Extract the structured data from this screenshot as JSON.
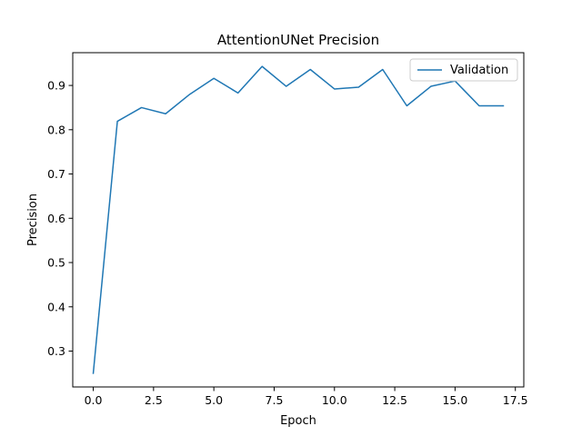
{
  "chart_data": {
    "type": "line",
    "title": "AttentionUNet Precision",
    "xlabel": "Epoch",
    "ylabel": "Precision",
    "xlim": [
      -0.85,
      17.85
    ],
    "ylim": [
      0.219,
      0.974
    ],
    "xticks": [
      0.0,
      2.5,
      5.0,
      7.5,
      10.0,
      12.5,
      15.0,
      17.5
    ],
    "xtick_labels": [
      "0.0",
      "2.5",
      "5.0",
      "7.5",
      "10.0",
      "12.5",
      "15.0",
      "17.5"
    ],
    "yticks": [
      0.3,
      0.4,
      0.5,
      0.6,
      0.7,
      0.8,
      0.9
    ],
    "ytick_labels": [
      "0.3",
      "0.4",
      "0.5",
      "0.6",
      "0.7",
      "0.8",
      "0.9"
    ],
    "grid": false,
    "legend_position": "top-right",
    "series": [
      {
        "name": "Validation",
        "color": "#1f77b4",
        "x": [
          0,
          1,
          2,
          3,
          4,
          5,
          6,
          7,
          8,
          9,
          10,
          11,
          12,
          13,
          14,
          15,
          16,
          17
        ],
        "y": [
          0.25,
          0.819,
          0.85,
          0.836,
          0.88,
          0.916,
          0.883,
          0.943,
          0.898,
          0.936,
          0.892,
          0.896,
          0.936,
          0.854,
          0.898,
          0.91,
          0.854,
          0.854
        ]
      }
    ]
  }
}
